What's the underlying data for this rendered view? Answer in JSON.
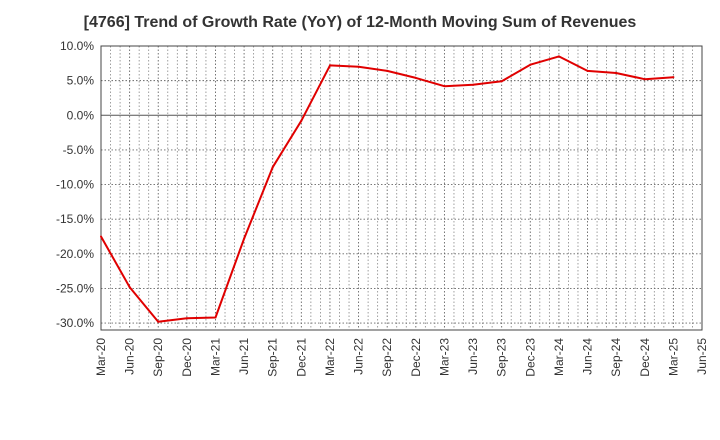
{
  "chart_data": {
    "type": "line",
    "title": "[4766]  Trend of Growth Rate (YoY) of 12-Month Moving Sum of Revenues",
    "xlabel": "",
    "ylabel": "",
    "y_unit": "%",
    "ylim": [
      -31,
      10
    ],
    "yticks": [
      10.0,
      5.0,
      0.0,
      -5.0,
      -10.0,
      -15.0,
      -20.0,
      -25.0,
      -30.0
    ],
    "ytick_labels": [
      "10.0%",
      "5.0%",
      "0.0%",
      "-5.0%",
      "-10.0%",
      "-15.0%",
      "-20.0%",
      "-25.0%",
      "-30.0%"
    ],
    "x_tick_labels": [
      "Mar-20",
      "Jun-20",
      "Sep-20",
      "Dec-20",
      "Mar-21",
      "Jun-21",
      "Sep-21",
      "Dec-21",
      "Mar-22",
      "Jun-22",
      "Sep-22",
      "Dec-22",
      "Mar-23",
      "Jun-23",
      "Sep-23",
      "Dec-23",
      "Mar-24",
      "Jun-24",
      "Sep-24",
      "Dec-24",
      "Mar-25",
      "Jun-25"
    ],
    "grid": true,
    "series": [
      {
        "color": "#e00000",
        "x": [
          "Mar-20",
          "Jun-20",
          "Sep-20",
          "Dec-20",
          "Mar-21",
          "Jun-21",
          "Sep-21",
          "Dec-21",
          "Mar-22",
          "Jun-22",
          "Sep-22",
          "Dec-22",
          "Mar-23",
          "Jun-23",
          "Sep-23",
          "Dec-23",
          "Mar-24",
          "Jun-24",
          "Sep-24",
          "Dec-24",
          "Mar-25"
        ],
        "values": [
          -17.5,
          -24.8,
          -29.8,
          -29.3,
          -29.2,
          -17.8,
          -7.5,
          -0.8,
          7.2,
          7.0,
          6.4,
          5.4,
          4.2,
          4.4,
          4.9,
          7.3,
          8.5,
          6.4,
          6.1,
          5.2,
          5.5
        ]
      }
    ]
  }
}
